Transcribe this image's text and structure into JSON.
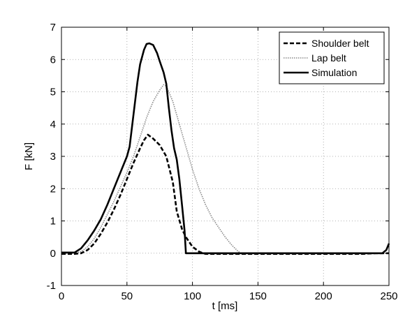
{
  "chart_data": {
    "type": "line",
    "title": "",
    "xlabel": "t [ms]",
    "ylabel": "F [kN]",
    "xlim": [
      0,
      250
    ],
    "ylim": [
      -1,
      7
    ],
    "xticks": [
      0,
      50,
      100,
      150,
      200,
      250
    ],
    "yticks": [
      -1,
      0,
      1,
      2,
      3,
      4,
      5,
      6,
      7
    ],
    "grid": true,
    "legend_position": "top-right",
    "series": [
      {
        "name": "Shoulder belt",
        "style": "dashed",
        "color": "#000000",
        "x": [
          0,
          10,
          15,
          20,
          25,
          30,
          35,
          40,
          45,
          50,
          55,
          60,
          63,
          66,
          70,
          75,
          80,
          85,
          88,
          92,
          95,
          100,
          105,
          108,
          110,
          130,
          150,
          200,
          230,
          240,
          248,
          250
        ],
        "y": [
          -0.02,
          -0.02,
          0.0,
          0.1,
          0.3,
          0.6,
          0.95,
          1.35,
          1.8,
          2.3,
          2.8,
          3.25,
          3.5,
          3.67,
          3.55,
          3.35,
          3.0,
          2.2,
          1.3,
          0.75,
          0.5,
          0.2,
          0.05,
          0.0,
          -0.02,
          -0.02,
          -0.02,
          -0.02,
          -0.02,
          0.0,
          0.0,
          0.0
        ]
      },
      {
        "name": "Lap belt",
        "style": "dotted",
        "color": "#888888",
        "x": [
          0,
          10,
          15,
          20,
          25,
          30,
          35,
          40,
          45,
          50,
          55,
          60,
          65,
          70,
          75,
          78,
          80,
          85,
          90,
          95,
          100,
          105,
          110,
          115,
          120,
          125,
          130,
          135,
          137,
          140,
          150,
          200,
          240,
          250
        ],
        "y": [
          0.0,
          0.0,
          0.05,
          0.2,
          0.45,
          0.8,
          1.2,
          1.6,
          2.05,
          2.5,
          3.0,
          3.6,
          4.2,
          4.7,
          5.05,
          5.22,
          5.18,
          4.7,
          4.0,
          3.3,
          2.6,
          2.0,
          1.5,
          1.1,
          0.8,
          0.5,
          0.25,
          0.05,
          0.0,
          0.0,
          0.0,
          0.0,
          0.0,
          0.0
        ]
      },
      {
        "name": "Simulation",
        "style": "solid",
        "color": "#000000",
        "x": [
          0,
          10,
          15,
          20,
          25,
          30,
          35,
          40,
          45,
          50,
          52,
          55,
          58,
          60,
          63,
          65,
          67,
          70,
          73,
          75,
          78,
          80,
          82,
          84,
          86,
          88,
          90,
          92,
          94,
          95,
          96,
          100,
          150,
          200,
          245,
          248,
          250
        ],
        "y": [
          0.02,
          0.02,
          0.15,
          0.4,
          0.7,
          1.05,
          1.5,
          2.0,
          2.5,
          3.0,
          3.3,
          4.3,
          5.3,
          5.85,
          6.3,
          6.48,
          6.5,
          6.45,
          6.2,
          5.95,
          5.6,
          5.25,
          4.5,
          3.8,
          3.25,
          2.9,
          2.3,
          1.5,
          0.7,
          0.0,
          0.0,
          0.0,
          0.0,
          0.0,
          0.0,
          0.1,
          0.3
        ]
      }
    ]
  }
}
